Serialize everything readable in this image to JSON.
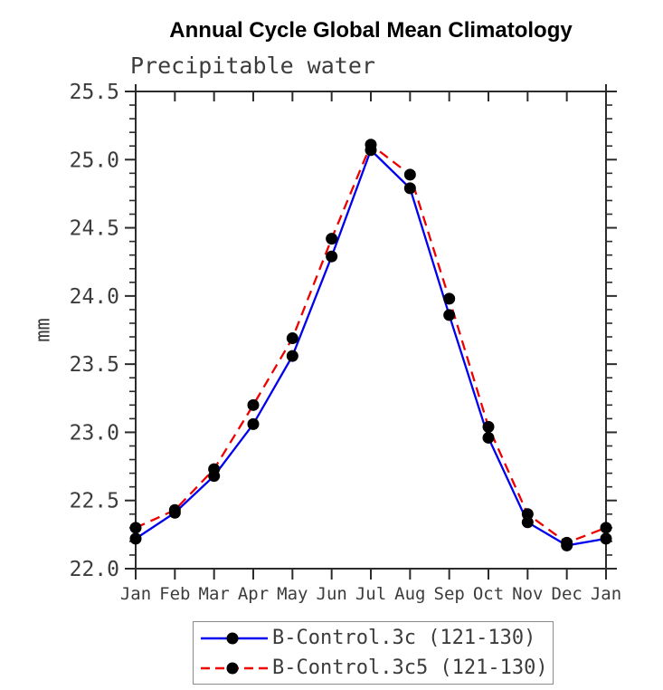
{
  "chart_data": {
    "type": "line",
    "title": "Annual Cycle Global Mean Climatology",
    "subtitle": "Precipitable water",
    "ylabel": "mm",
    "xlabel": "",
    "x_tick_labels": [
      "Jan",
      "Feb",
      "Mar",
      "Apr",
      "May",
      "Jun",
      "Jul",
      "Aug",
      "Sep",
      "Oct",
      "Nov",
      "Dec",
      "Jan"
    ],
    "y_ticks": [
      22.0,
      22.5,
      23.0,
      23.5,
      24.0,
      24.5,
      25.0,
      25.5
    ],
    "ylim": [
      22.0,
      25.5
    ],
    "y_minor_step": 0.1,
    "grid": false,
    "legend_position": "bottom",
    "series": [
      {
        "name": "B-Control.3c (121-130)",
        "color": "#0000ee",
        "line_style": "solid",
        "marker": "filled-circle",
        "marker_color": "#000000",
        "values": [
          22.22,
          22.41,
          22.68,
          23.06,
          23.56,
          24.29,
          25.07,
          24.79,
          23.86,
          22.96,
          22.34,
          22.17,
          22.22
        ]
      },
      {
        "name": "B-Control.3c5 (121-130)",
        "color": "#ee0000",
        "line_style": "dashed",
        "marker": "filled-circle",
        "marker_color": "#000000",
        "values": [
          22.3,
          22.43,
          22.73,
          23.2,
          23.69,
          24.42,
          25.11,
          24.89,
          23.98,
          23.04,
          22.4,
          22.19,
          22.3
        ]
      }
    ],
    "axis_color": "#2b2b2b",
    "tick_label_color": "#3c3c3c"
  }
}
